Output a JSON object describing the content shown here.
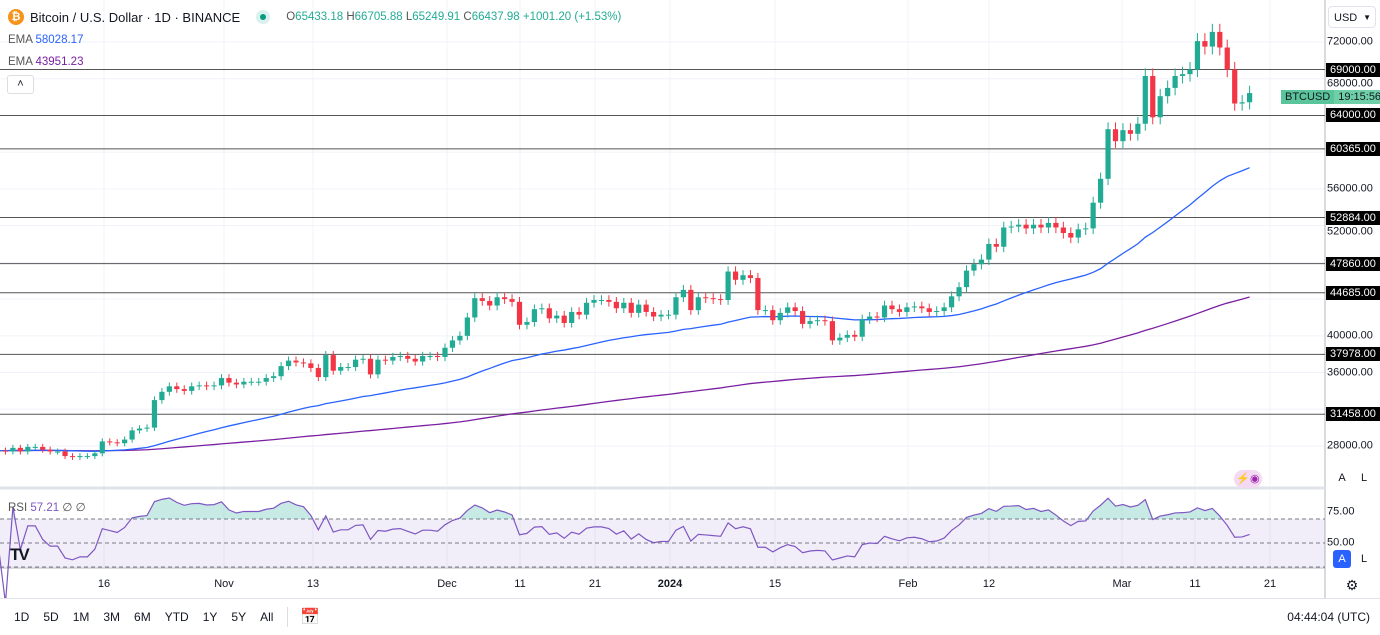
{
  "header": {
    "symbol": "Bitcoin / U.S. Dollar · 1D · BINANCE",
    "open": "65433.18",
    "high": "66705.88",
    "low": "65249.91",
    "close": "66437.98",
    "change": "+1001.20 (+1.53%)",
    "o": "O",
    "h": "H",
    "l": "L",
    "c": "C"
  },
  "indicators": [
    {
      "name": "EMA",
      "value": "58028.17",
      "color": "#2962ff"
    },
    {
      "name": "EMA",
      "value": "43951.23",
      "color": "#7b1fa2"
    }
  ],
  "rsi": {
    "name": "RSI",
    "value": "57.21",
    "extra1": "∅",
    "extra2": "∅",
    "color": "#7e57c2",
    "levels": [
      "75.00",
      "50.00"
    ]
  },
  "currency": "USD",
  "ticker_tag": {
    "symbol": "BTCUSD",
    "countdown": "19:15:56"
  },
  "colors": {
    "up": "#22ab94",
    "down": "#f23645",
    "ema_fast": "#2962ff",
    "ema_slow": "#7b1fa2",
    "rsi": "#7e57c2"
  },
  "price_axis_labels": [
    "72000.00",
    "68000.00",
    "56000.00",
    "52000.00",
    "40000.00",
    "36000.00",
    "28000.00"
  ],
  "horizontal_levels": [
    "69000.00",
    "64000.00",
    "60365.00",
    "52884.00",
    "47860.00",
    "44685.00",
    "37978.00",
    "31458.00"
  ],
  "time_axis_labels": [
    "16",
    "Nov",
    "13",
    "Dec",
    "11",
    "21",
    "2024",
    "15",
    "Feb",
    "12",
    "Mar",
    "11",
    "21"
  ],
  "auto_btn": "A",
  "log_btn": "L",
  "bottom_bar": {
    "ranges": [
      "1D",
      "5D",
      "1M",
      "3M",
      "6M",
      "YTD",
      "1Y",
      "5Y",
      "All"
    ],
    "clock": "04:44:04 (UTC)"
  },
  "chart_data": {
    "type": "candlestick",
    "interval": "1D",
    "first_date": "2023-10-02",
    "last_date": "2024-03-18",
    "ylim": [
      26000,
      74000
    ],
    "closes": [
      27500,
      27400,
      27800,
      27400,
      27900,
      27900,
      27600,
      27400,
      27400,
      26900,
      26800,
      26900,
      26900,
      27200,
      28500,
      28400,
      28300,
      28700,
      29700,
      29900,
      30000,
      33000,
      33900,
      34500,
      34200,
      34000,
      34500,
      34600,
      34500,
      34600,
      35400,
      34900,
      34700,
      35000,
      35000,
      35000,
      35400,
      35600,
      36700,
      37300,
      37100,
      37000,
      36500,
      35500,
      37900,
      36200,
      36600,
      36600,
      37400,
      37500,
      35800,
      37400,
      37300,
      37700,
      37800,
      37500,
      37200,
      37800,
      37800,
      37700,
      38700,
      39500,
      40000,
      42000,
      44100,
      43800,
      43300,
      44200,
      44000,
      43700,
      41200,
      41500,
      42900,
      43000,
      41900,
      42200,
      41400,
      42600,
      42300,
      43600,
      43900,
      43900,
      43700,
      43000,
      43600,
      42500,
      43400,
      42600,
      42100,
      42300,
      42300,
      44200,
      45000,
      42800,
      44200,
      44100,
      44000,
      43900,
      47000,
      46100,
      46600,
      46300,
      42800,
      42800,
      41700,
      42500,
      43100,
      42700,
      41300,
      41600,
      41700,
      41600,
      39500,
      39800,
      40100,
      39900,
      41800,
      42100,
      42000,
      43300,
      42900,
      42600,
      43100,
      43200,
      43000,
      42600,
      42700,
      43100,
      44300,
      45300,
      47100,
      47800,
      48300,
      50000,
      49700,
      51800,
      51900,
      52100,
      51700,
      52100,
      51800,
      52300,
      51800,
      51200,
      50700,
      51600,
      51700,
      54500,
      57100,
      62500,
      61200,
      62400,
      62000,
      63100,
      68300,
      63800,
      66100,
      67000,
      68300,
      68500,
      69000,
      72100,
      71500,
      73100,
      71400,
      69000,
      65300,
      65433.18,
      66437.98
    ]
  }
}
